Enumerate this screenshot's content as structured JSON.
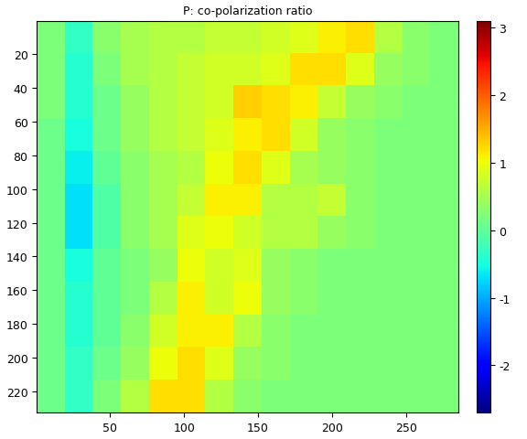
{
  "chart_data": {
    "type": "heatmap",
    "title": "P: co-polarization ratio",
    "color": "jet",
    "xlim": [
      0.5,
      285.5
    ],
    "ylim": [
      232.5,
      0.5
    ],
    "xticks": [
      50,
      100,
      150,
      200,
      250
    ],
    "yticks": [
      20,
      40,
      60,
      80,
      100,
      120,
      140,
      160,
      180,
      200,
      220
    ],
    "cells": [
      [
        0.2,
        -0.3,
        0.3,
        0.5,
        0.6,
        0.6,
        0.7,
        0.7,
        0.8,
        0.9,
        1.1,
        1.2,
        0.6,
        0.3,
        0.2
      ],
      [
        0.2,
        -0.4,
        0.2,
        0.5,
        0.6,
        0.7,
        0.8,
        0.8,
        0.9,
        1.2,
        1.2,
        0.9,
        0.4,
        0.3,
        0.2
      ],
      [
        0.2,
        -0.4,
        0.1,
        0.4,
        0.6,
        0.7,
        0.8,
        1.3,
        1.2,
        1.1,
        0.7,
        0.4,
        0.3,
        0.2,
        0.2
      ],
      [
        0.1,
        -0.5,
        0.1,
        0.4,
        0.6,
        0.7,
        0.9,
        1.1,
        1.2,
        0.8,
        0.4,
        0.3,
        0.2,
        0.2,
        0.2
      ],
      [
        0.1,
        -0.6,
        0.0,
        0.3,
        0.5,
        0.6,
        1.0,
        1.2,
        0.9,
        0.5,
        0.4,
        0.3,
        0.2,
        0.2,
        0.2
      ],
      [
        0.1,
        -0.7,
        -0.1,
        0.3,
        0.5,
        0.7,
        1.1,
        1.1,
        0.6,
        0.6,
        0.7,
        0.3,
        0.2,
        0.2,
        0.2
      ],
      [
        0.1,
        -0.7,
        -0.1,
        0.3,
        0.5,
        0.9,
        1.0,
        0.8,
        0.6,
        0.6,
        0.4,
        0.3,
        0.2,
        0.2,
        0.2
      ],
      [
        0.1,
        -0.5,
        0.0,
        0.2,
        0.4,
        1.0,
        0.8,
        0.9,
        0.4,
        0.3,
        0.2,
        0.2,
        0.2,
        0.2,
        0.2
      ],
      [
        0.1,
        -0.4,
        0.0,
        0.2,
        0.6,
        1.1,
        0.8,
        1.0,
        0.4,
        0.3,
        0.2,
        0.2,
        0.2,
        0.2,
        0.2
      ],
      [
        0.1,
        -0.4,
        0.0,
        0.3,
        0.8,
        1.1,
        1.1,
        0.6,
        0.3,
        0.2,
        0.2,
        0.2,
        0.2,
        0.2,
        0.2
      ],
      [
        0.1,
        -0.3,
        0.1,
        0.4,
        1.0,
        1.2,
        0.9,
        0.4,
        0.3,
        0.2,
        0.2,
        0.2,
        0.2,
        0.2,
        0.2
      ],
      [
        0.1,
        -0.3,
        0.2,
        0.6,
        1.2,
        1.2,
        0.6,
        0.3,
        0.2,
        0.2,
        0.2,
        0.2,
        0.2,
        0.2,
        0.2
      ]
    ],
    "colorbar_range": [
      -2.7,
      3.1
    ],
    "colorbar_ticks": [
      -2,
      -1,
      0,
      1,
      2,
      3
    ]
  }
}
